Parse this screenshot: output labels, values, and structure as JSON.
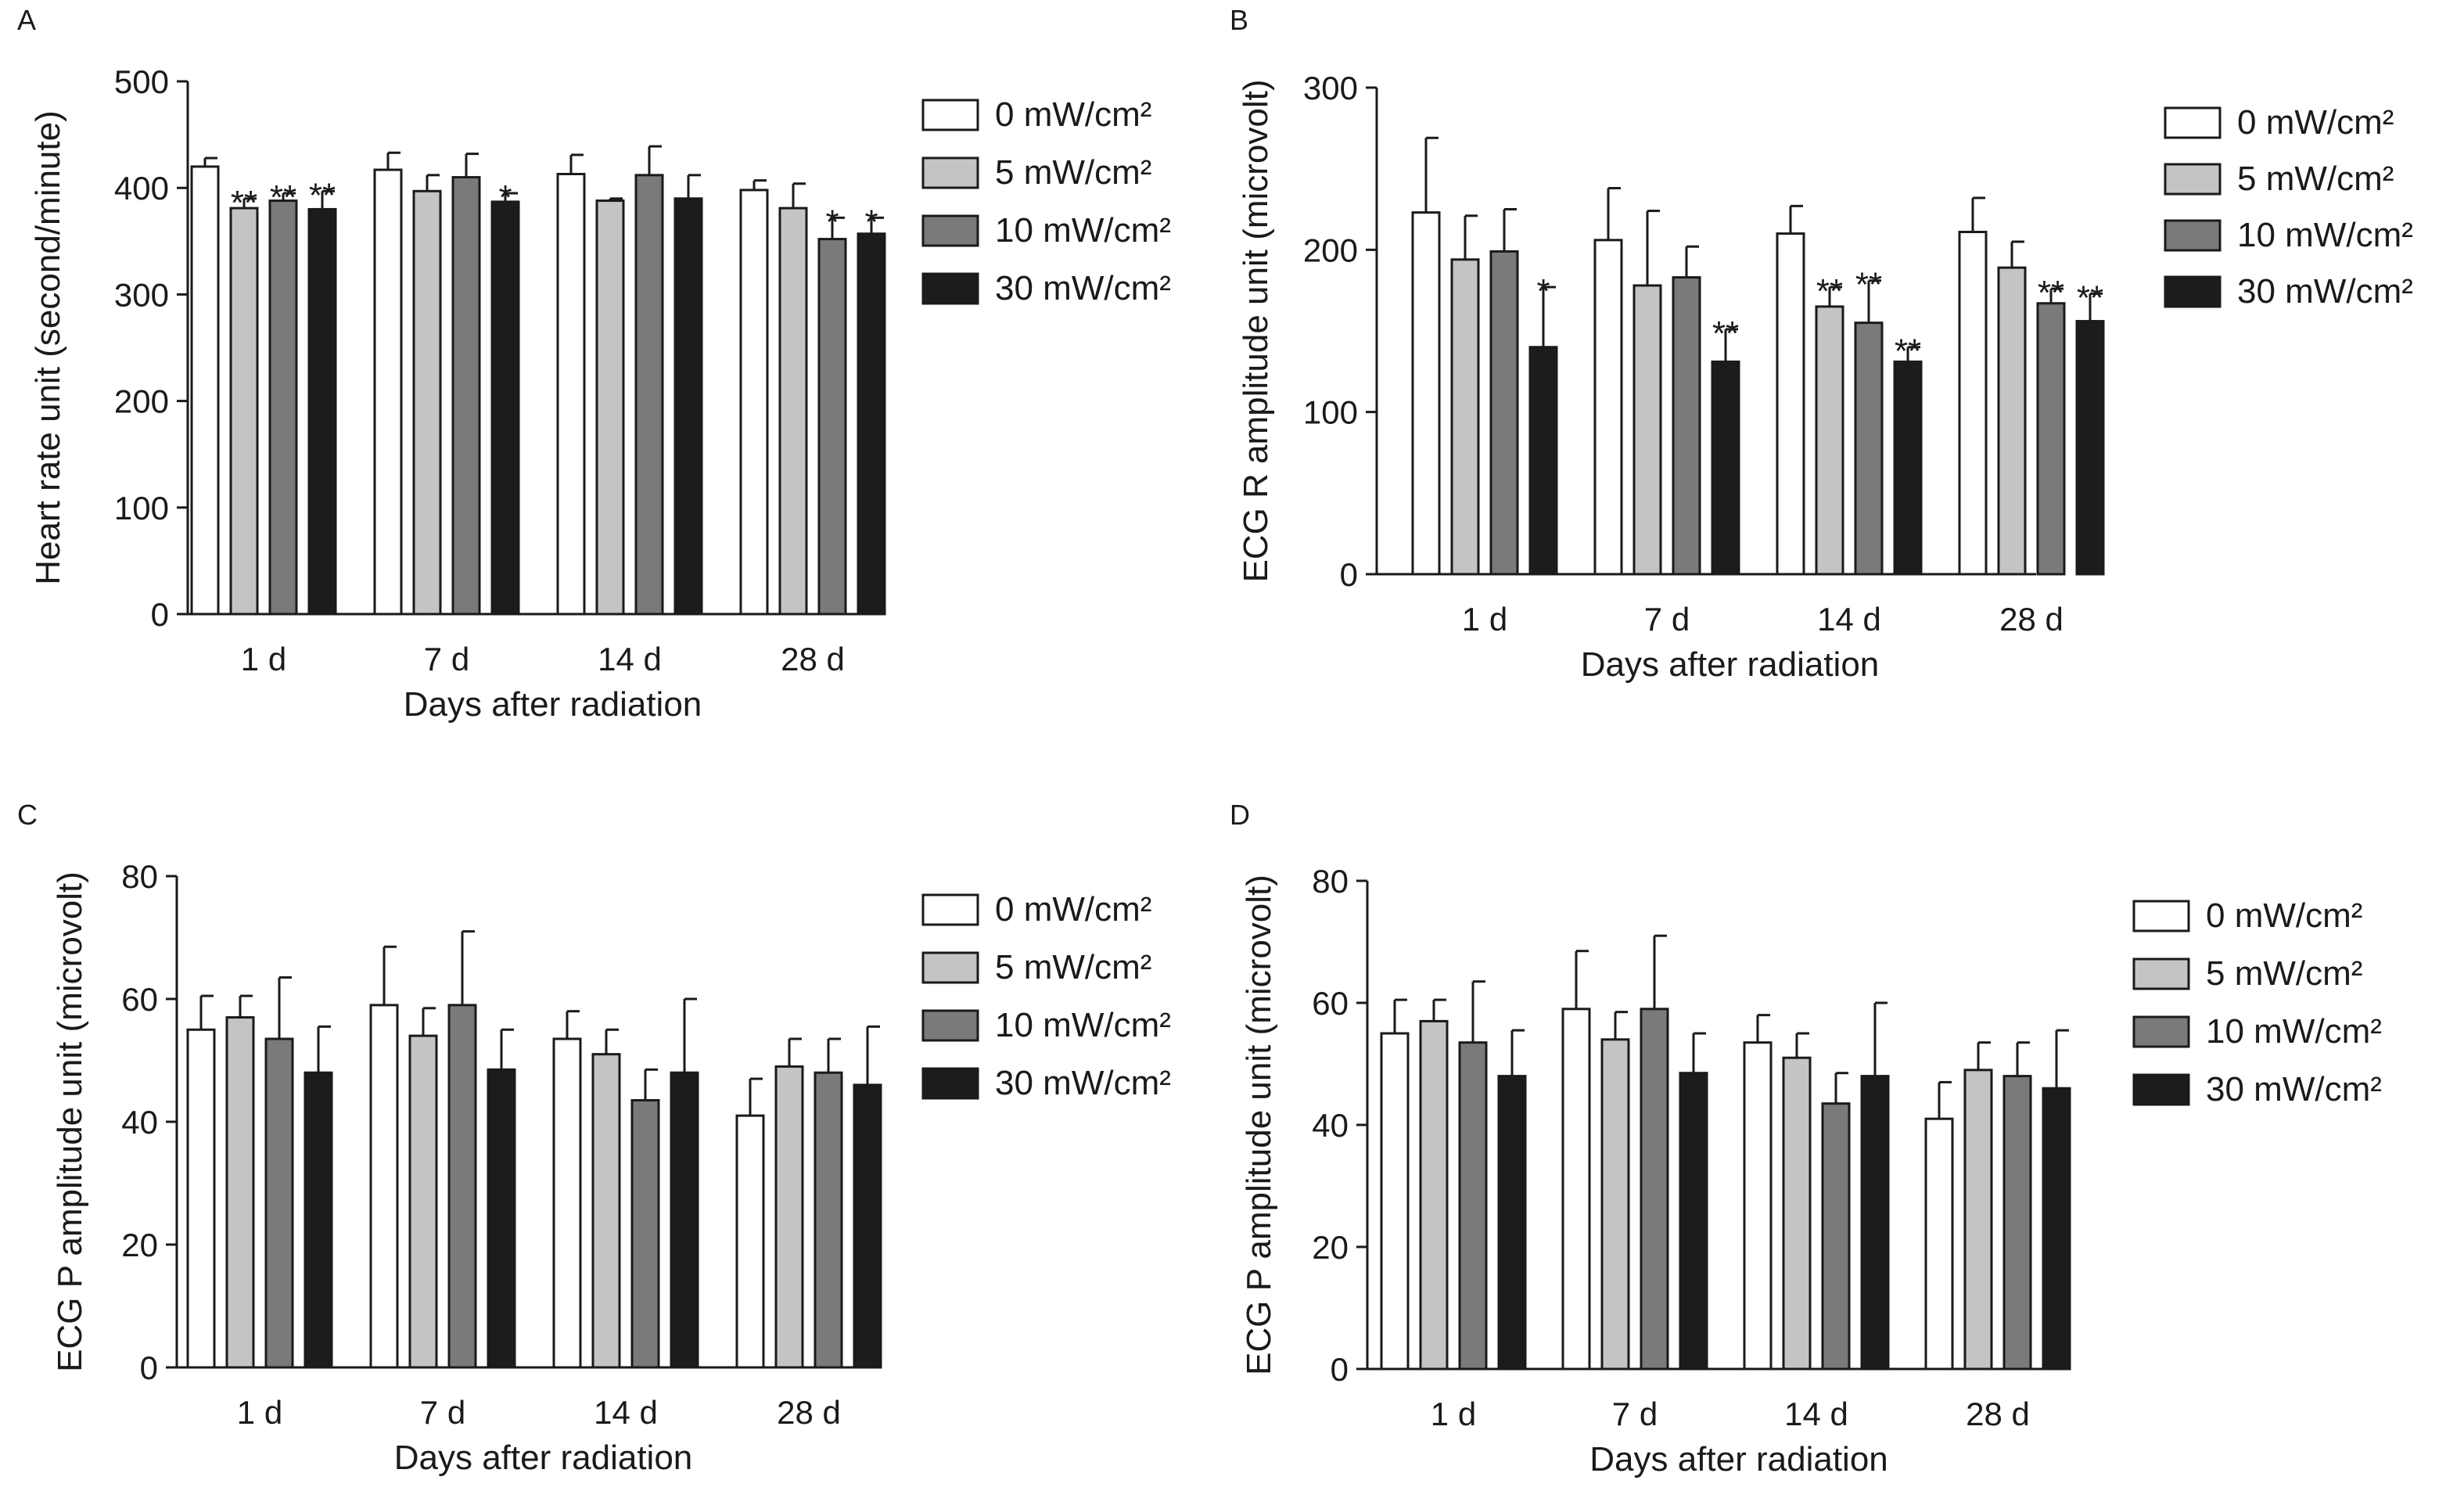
{
  "chart_data": [
    {
      "panel": "A",
      "type": "bar",
      "categories": [
        "1 d",
        "7 d",
        "14 d",
        "28 d"
      ],
      "xlabel": "Days after radiation",
      "ylabel": "Heart rate unit (second/minute)",
      "ylim": [
        0,
        500
      ],
      "yticks": [
        0,
        100,
        200,
        300,
        400,
        500
      ],
      "legend_position": "top-right",
      "series": [
        {
          "name": "0 mW/cm²",
          "color": "#ffffff",
          "values": [
            420,
            417,
            413,
            398
          ],
          "errors": [
            8,
            16,
            18,
            9
          ],
          "stars": [
            "",
            "",
            "",
            ""
          ]
        },
        {
          "name": "5 mW/cm²",
          "color": "#c4c4c4",
          "values": [
            381,
            397,
            388,
            381
          ],
          "errors": [
            9,
            15,
            2,
            23
          ],
          "stars": [
            "**",
            "",
            "",
            ""
          ]
        },
        {
          "name": "10 mW/cm²",
          "color": "#7a7a7a",
          "values": [
            388,
            410,
            412,
            352
          ],
          "errors": [
            7,
            22,
            27,
            20
          ],
          "stars": [
            "**",
            "",
            "",
            "*"
          ]
        },
        {
          "name": "30 mW/cm²",
          "color": "#1c1c1c",
          "values": [
            380,
            387,
            390,
            357
          ],
          "errors": [
            17,
            8,
            22,
            15
          ],
          "stars": [
            "**",
            "*",
            "",
            "*"
          ]
        }
      ]
    },
    {
      "panel": "B",
      "type": "bar",
      "categories": [
        "1 d",
        "7 d",
        "14 d",
        "28 d"
      ],
      "xlabel": "Days after radiation",
      "ylabel": "ECG R amplitude unit (microvolt)",
      "ylim": [
        0,
        300
      ],
      "yticks": [
        0,
        100,
        200,
        300
      ],
      "legend_position": "top-right",
      "series": [
        {
          "name": "0 mW/cm²",
          "color": "#ffffff",
          "values": [
            223,
            206,
            210,
            211
          ],
          "errors": [
            46,
            32,
            17,
            21
          ],
          "stars": [
            "",
            "",
            "",
            ""
          ]
        },
        {
          "name": "5 mW/cm²",
          "color": "#c4c4c4",
          "values": [
            194,
            178,
            165,
            189
          ],
          "errors": [
            27,
            46,
            12,
            16
          ],
          "stars": [
            "",
            "",
            "**",
            ""
          ]
        },
        {
          "name": "10 mW/cm²",
          "color": "#7a7a7a",
          "values": [
            199,
            183,
            155,
            167
          ],
          "errors": [
            26,
            19,
            26,
            9
          ],
          "stars": [
            "",
            "",
            "**",
            "**"
          ]
        },
        {
          "name": "30 mW/cm²",
          "color": "#1c1c1c",
          "values": [
            140,
            131,
            131,
            156
          ],
          "errors": [
            37,
            20,
            9,
            17
          ],
          "stars": [
            "*",
            "**",
            "**",
            "**"
          ]
        }
      ]
    },
    {
      "panel": "C",
      "type": "bar",
      "categories": [
        "1 d",
        "7 d",
        "14 d",
        "28 d"
      ],
      "xlabel": "Days after radiation",
      "ylabel": "ECG P amplitude unit (microvolt)",
      "ylim": [
        0,
        80
      ],
      "yticks": [
        0,
        20,
        40,
        60,
        80
      ],
      "legend_position": "top-right",
      "series": [
        {
          "name": "0 mW/cm²",
          "color": "#ffffff",
          "values": [
            55,
            59,
            53.5,
            41
          ],
          "errors": [
            5.5,
            9.5,
            4.5,
            6
          ],
          "stars": [
            "",
            "",
            "",
            ""
          ]
        },
        {
          "name": "5 mW/cm²",
          "color": "#c4c4c4",
          "values": [
            57,
            54,
            51,
            49
          ],
          "errors": [
            3.5,
            4.5,
            4,
            4.5
          ],
          "stars": [
            "",
            "",
            "",
            ""
          ]
        },
        {
          "name": "10 mW/cm²",
          "color": "#7a7a7a",
          "values": [
            53.5,
            59,
            43.5,
            48
          ],
          "errors": [
            10,
            12,
            5,
            5.5
          ],
          "stars": [
            "",
            "",
            "",
            ""
          ]
        },
        {
          "name": "30 mW/cm²",
          "color": "#1c1c1c",
          "values": [
            48,
            48.5,
            48,
            46
          ],
          "errors": [
            7.5,
            6.5,
            12,
            9.5
          ],
          "stars": [
            "",
            "",
            "",
            ""
          ]
        }
      ]
    },
    {
      "panel": "D",
      "type": "bar",
      "categories": [
        "1 d",
        "7 d",
        "14 d",
        "28 d"
      ],
      "xlabel": "Days after radiation",
      "ylabel": "ECG P amplitude unit (microvolt)",
      "ylim": [
        0,
        80
      ],
      "yticks": [
        0,
        20,
        40,
        60,
        80
      ],
      "legend_position": "top-right",
      "series": [
        {
          "name": "0 mW/cm²",
          "color": "#ffffff",
          "values": [
            55,
            59,
            53.5,
            41
          ],
          "errors": [
            5.5,
            9.5,
            4.5,
            6
          ],
          "stars": [
            "",
            "",
            "",
            ""
          ]
        },
        {
          "name": "5 mW/cm²",
          "color": "#c4c4c4",
          "values": [
            57,
            54,
            51,
            49
          ],
          "errors": [
            3.5,
            4.5,
            4,
            4.5
          ],
          "stars": [
            "",
            "",
            "",
            ""
          ]
        },
        {
          "name": "10 mW/cm²",
          "color": "#7a7a7a",
          "values": [
            53.5,
            59,
            43.5,
            48
          ],
          "errors": [
            10,
            12,
            5,
            5.5
          ],
          "stars": [
            "",
            "",
            "",
            ""
          ]
        },
        {
          "name": "30 mW/cm²",
          "color": "#1c1c1c",
          "values": [
            48,
            48.5,
            48,
            46
          ],
          "errors": [
            7.5,
            6.5,
            12,
            9.5
          ],
          "stars": [
            "",
            "",
            "",
            ""
          ]
        }
      ]
    }
  ]
}
